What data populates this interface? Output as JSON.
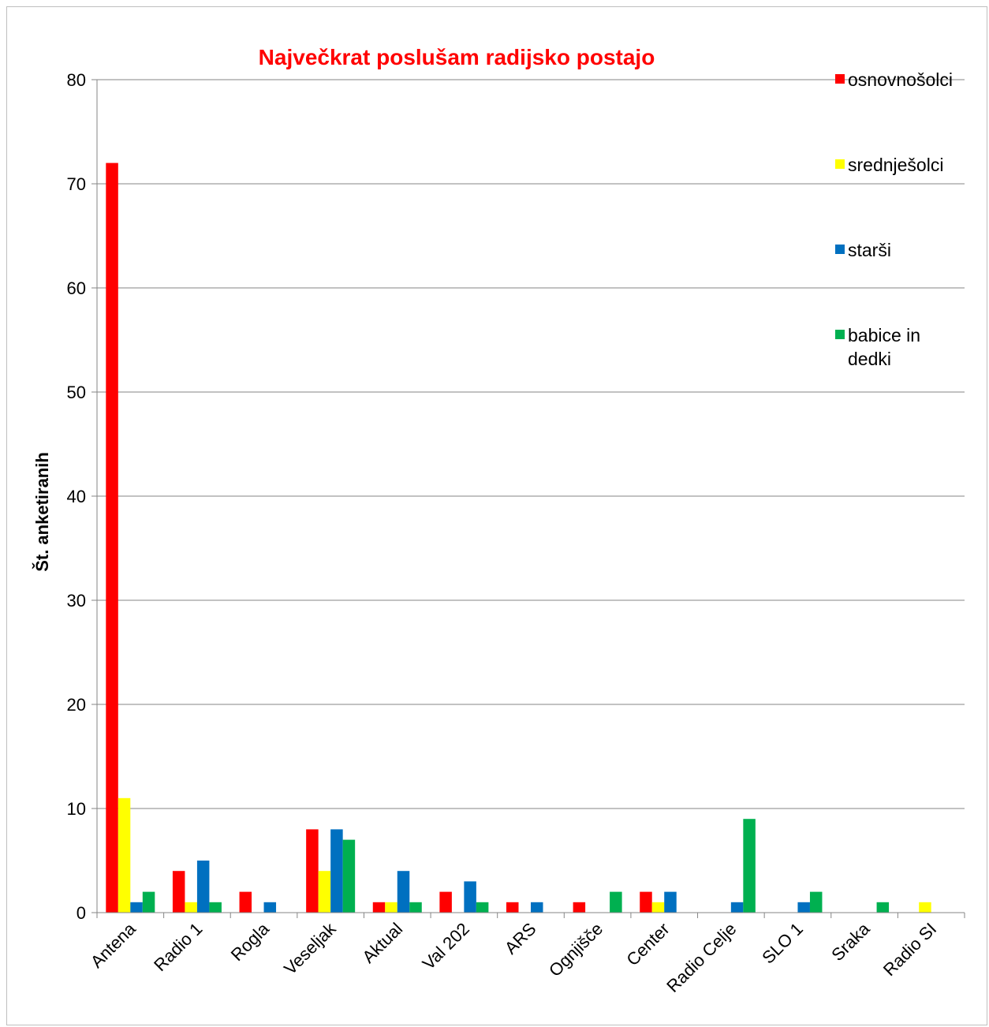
{
  "chart_data": {
    "type": "bar",
    "title": "Največkrat poslušam radijsko postajo",
    "title_color": "#ff0000",
    "ylabel": "Št. anketiranih",
    "xlabel": "",
    "ylim": [
      0,
      80
    ],
    "yticks": [
      0,
      10,
      20,
      30,
      40,
      50,
      60,
      70,
      80
    ],
    "grid": true,
    "legend_position": "right",
    "categories": [
      "Antena",
      "Radio 1",
      "Rogla",
      "Veseljak",
      "Aktual",
      "Val 202",
      "ARS",
      "Ognjišče",
      "Center",
      "Radio Celje",
      "SLO 1",
      "Sraka",
      "Radio SI"
    ],
    "series": [
      {
        "name": "osnovnošolci",
        "color": "#ff0000",
        "values": [
          72,
          4,
          2,
          8,
          1,
          2,
          1,
          1,
          2,
          0,
          0,
          0,
          0
        ]
      },
      {
        "name": "srednješolci",
        "color": "#ffff00",
        "values": [
          11,
          1,
          0,
          4,
          1,
          0,
          0,
          0,
          1,
          0,
          0,
          0,
          1
        ]
      },
      {
        "name": "starši",
        "color": "#0070c0",
        "values": [
          1,
          5,
          1,
          8,
          4,
          3,
          1,
          0,
          2,
          1,
          1,
          0,
          0
        ]
      },
      {
        "name": "babice in dedki",
        "color": "#00b050",
        "values": [
          2,
          1,
          0,
          7,
          1,
          1,
          0,
          2,
          0,
          9,
          2,
          1,
          0
        ]
      }
    ]
  }
}
